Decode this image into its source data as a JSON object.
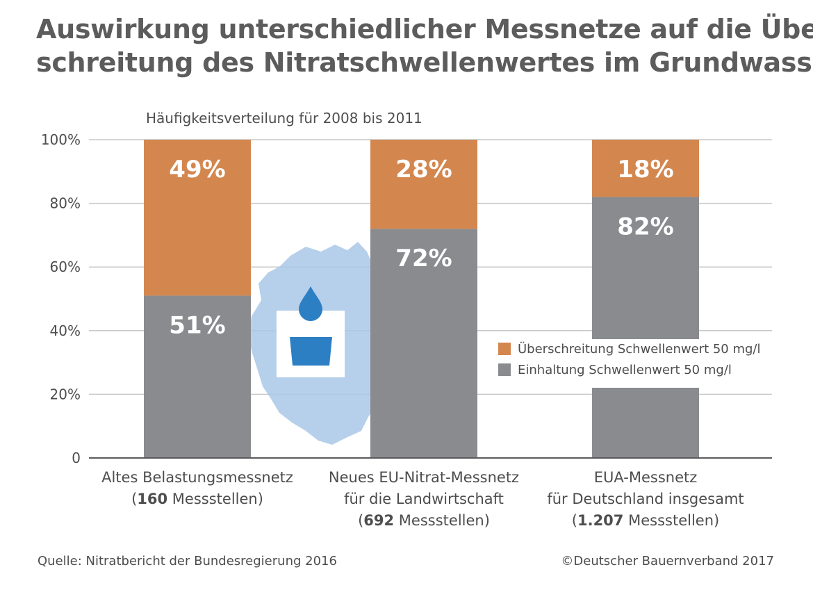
{
  "title_lines": [
    "Auswirkung unterschiedlicher Messnetze auf die Über-",
    "schreitung des Nitratschwellenwertes im Grundwasser"
  ],
  "chart_data": {
    "type": "bar",
    "stacked": true,
    "subtitle": "Häufigkeitsverteilung für 2008 bis 2011",
    "y_ticks": [
      "0",
      "20%",
      "40%",
      "60%",
      "80%",
      "100%"
    ],
    "ylim": [
      0,
      100
    ],
    "grid": true,
    "categories": [
      {
        "line1": "Altes Belastungsmessnetz",
        "line2": "",
        "count": "160",
        "count_suffix": " Messstellen)"
      },
      {
        "line1": "Neues EU-Nitrat-Messnetz",
        "line2": "für die Landwirtschaft",
        "count": "692",
        "count_suffix": " Messstellen)"
      },
      {
        "line1": "EUA-Messnetz",
        "line2": "für Deutschland insgesamt",
        "count": "1.207",
        "count_suffix": " Messstellen)"
      }
    ],
    "series": [
      {
        "name": "Einhaltung Schwellenwert 50 mg/l",
        "color": "#8a8b8f",
        "values": [
          51,
          72,
          82
        ],
        "labels": [
          "51%",
          "72%",
          "82%"
        ]
      },
      {
        "name": "Überschreitung Schwellenwert 50 mg/l",
        "color": "#d3874f",
        "values": [
          49,
          28,
          18
        ],
        "labels": [
          "49%",
          "28%",
          "18%"
        ]
      }
    ],
    "legend": [
      {
        "name": "Überschreitung Schwellenwert 50 mg/l",
        "color": "#d3874f"
      },
      {
        "name": "Einhaltung Schwellenwert 50 mg/l",
        "color": "#8a8b8f"
      }
    ],
    "legend_position": "right-middle"
  },
  "footer": {
    "source": "Quelle: Nitratbericht der Bundesregierung 2016",
    "copyright": "©Deutscher Bauernverband 2017"
  },
  "illustration": {
    "icon": "germany-map-water-glass-icon",
    "map_color": "#a9c8e8",
    "water_color": "#2d7fc4"
  }
}
